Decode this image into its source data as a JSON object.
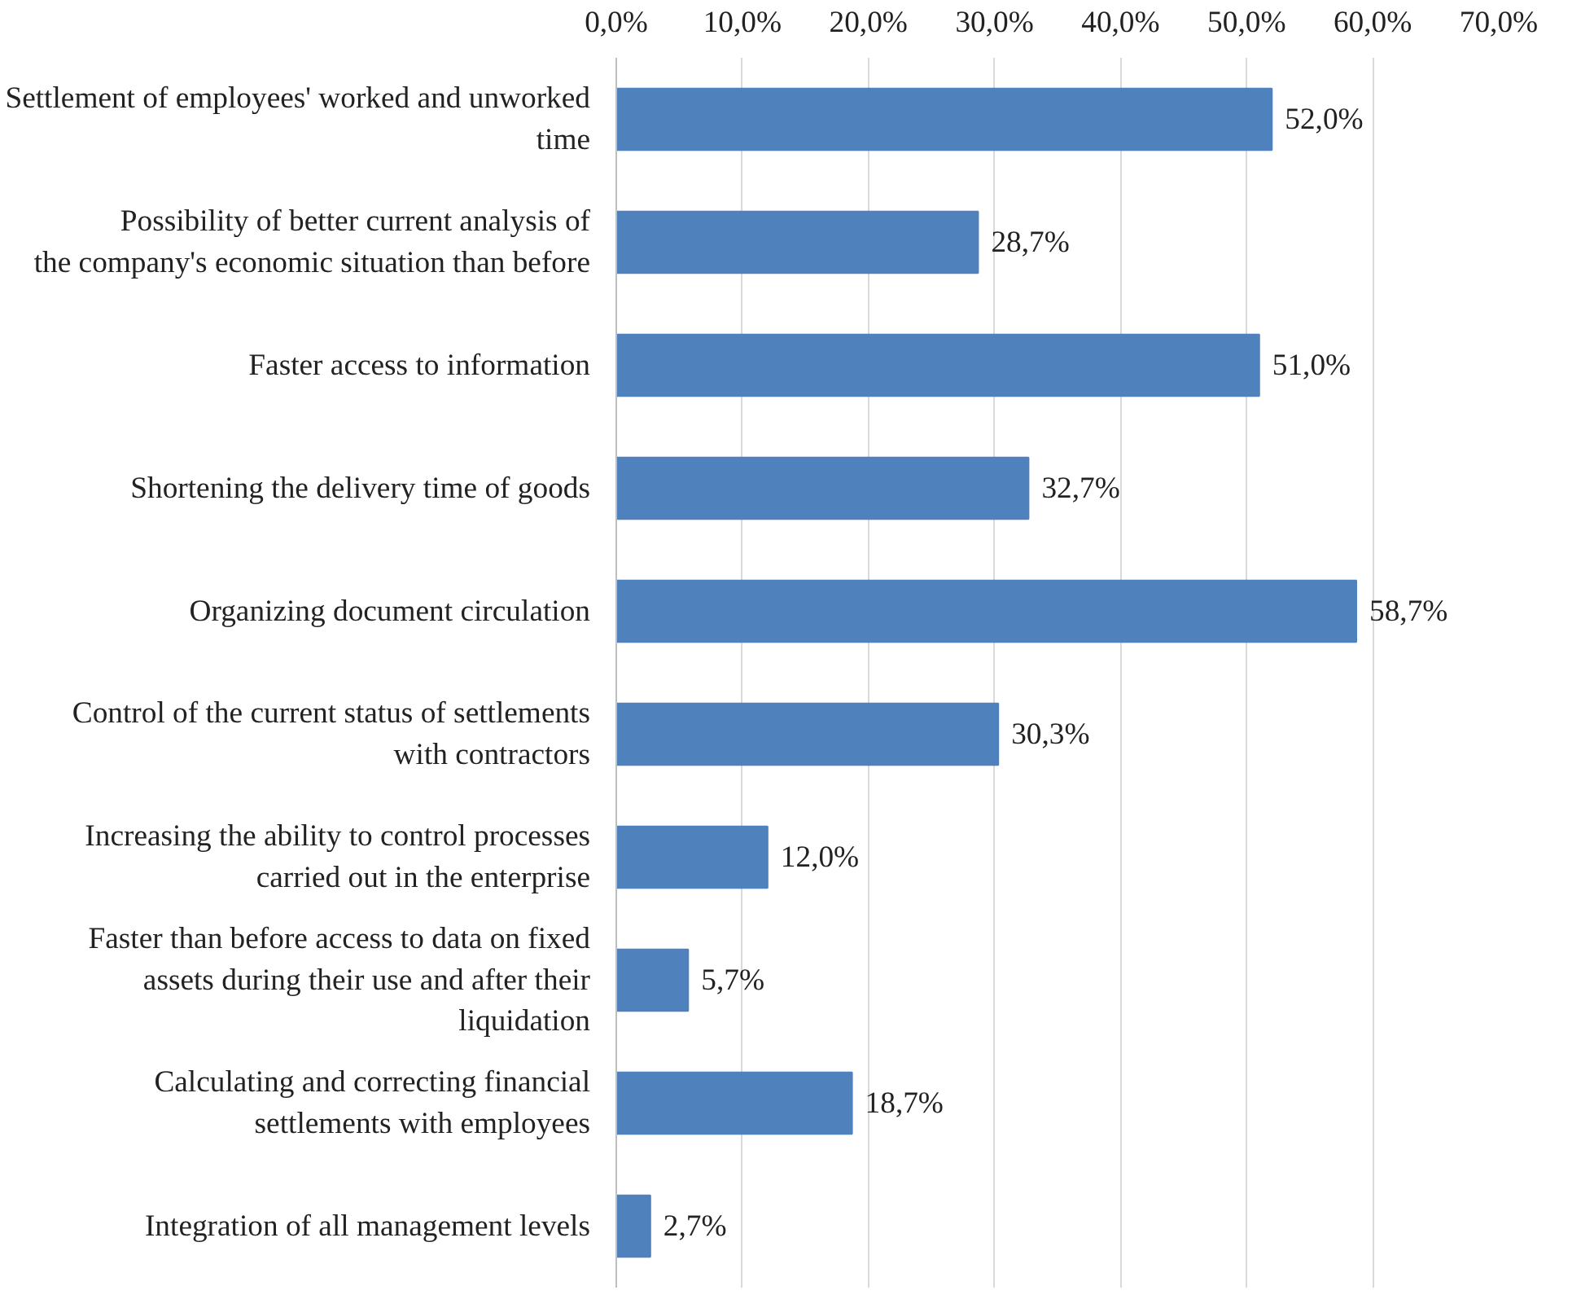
{
  "chart_data": {
    "type": "bar",
    "orientation": "horizontal",
    "categories": [
      "Settlement of employees' worked and unworked time",
      "Possibility of better current analysis of the company's economic situation than before",
      "Faster access to information",
      "Shortening the delivery time of goods",
      "Organizing document circulation",
      "Control of the current status of settlements with contractors",
      "Increasing the ability to control processes carried out in the enterprise",
      "Faster than before access to data on fixed assets during their use and after their liquidation",
      "Calculating and correcting financial settlements with employees",
      "Integration of all management levels"
    ],
    "values": [
      52.0,
      28.7,
      51.0,
      32.7,
      58.7,
      30.3,
      12.0,
      5.7,
      18.7,
      2.7
    ],
    "value_labels": [
      "52,0%",
      "28,7%",
      "51,0%",
      "32,7%",
      "58,7%",
      "30,3%",
      "12,0%",
      "5,7%",
      "18,7%",
      "2,7%"
    ],
    "color": "#4f81bd",
    "xlim": [
      0,
      70
    ],
    "xticks": [
      {
        "value": 0,
        "label": "0,0%"
      },
      {
        "value": 10,
        "label": "10,0%"
      },
      {
        "value": 20,
        "label": "20,0%"
      },
      {
        "value": 30,
        "label": "30,0%"
      },
      {
        "value": 40,
        "label": "40,0%"
      },
      {
        "value": 50,
        "label": "50,0%"
      },
      {
        "value": 60,
        "label": "60,0%"
      },
      {
        "value": 70,
        "label": "70,0%"
      }
    ],
    "grid": "x"
  }
}
